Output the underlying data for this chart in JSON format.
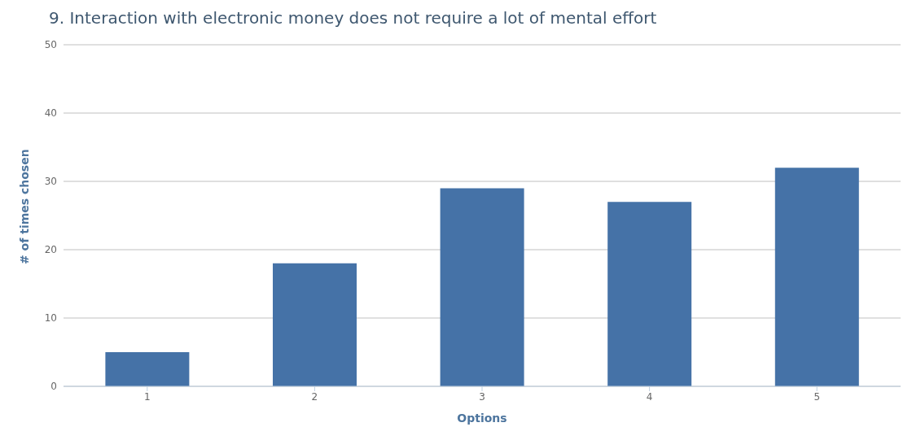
{
  "chart_data": {
    "type": "bar",
    "title": "9. Interaction with electronic money does not require a lot of mental effort",
    "xlabel": "Options",
    "ylabel": "# of times chosen",
    "categories": [
      "1",
      "2",
      "3",
      "4",
      "5"
    ],
    "values": [
      5,
      18,
      29,
      27,
      32
    ],
    "color": "#4572a7",
    "ylim": [
      0,
      50
    ],
    "yticks": [
      0,
      10,
      20,
      30,
      40,
      50
    ],
    "grid": "y"
  }
}
